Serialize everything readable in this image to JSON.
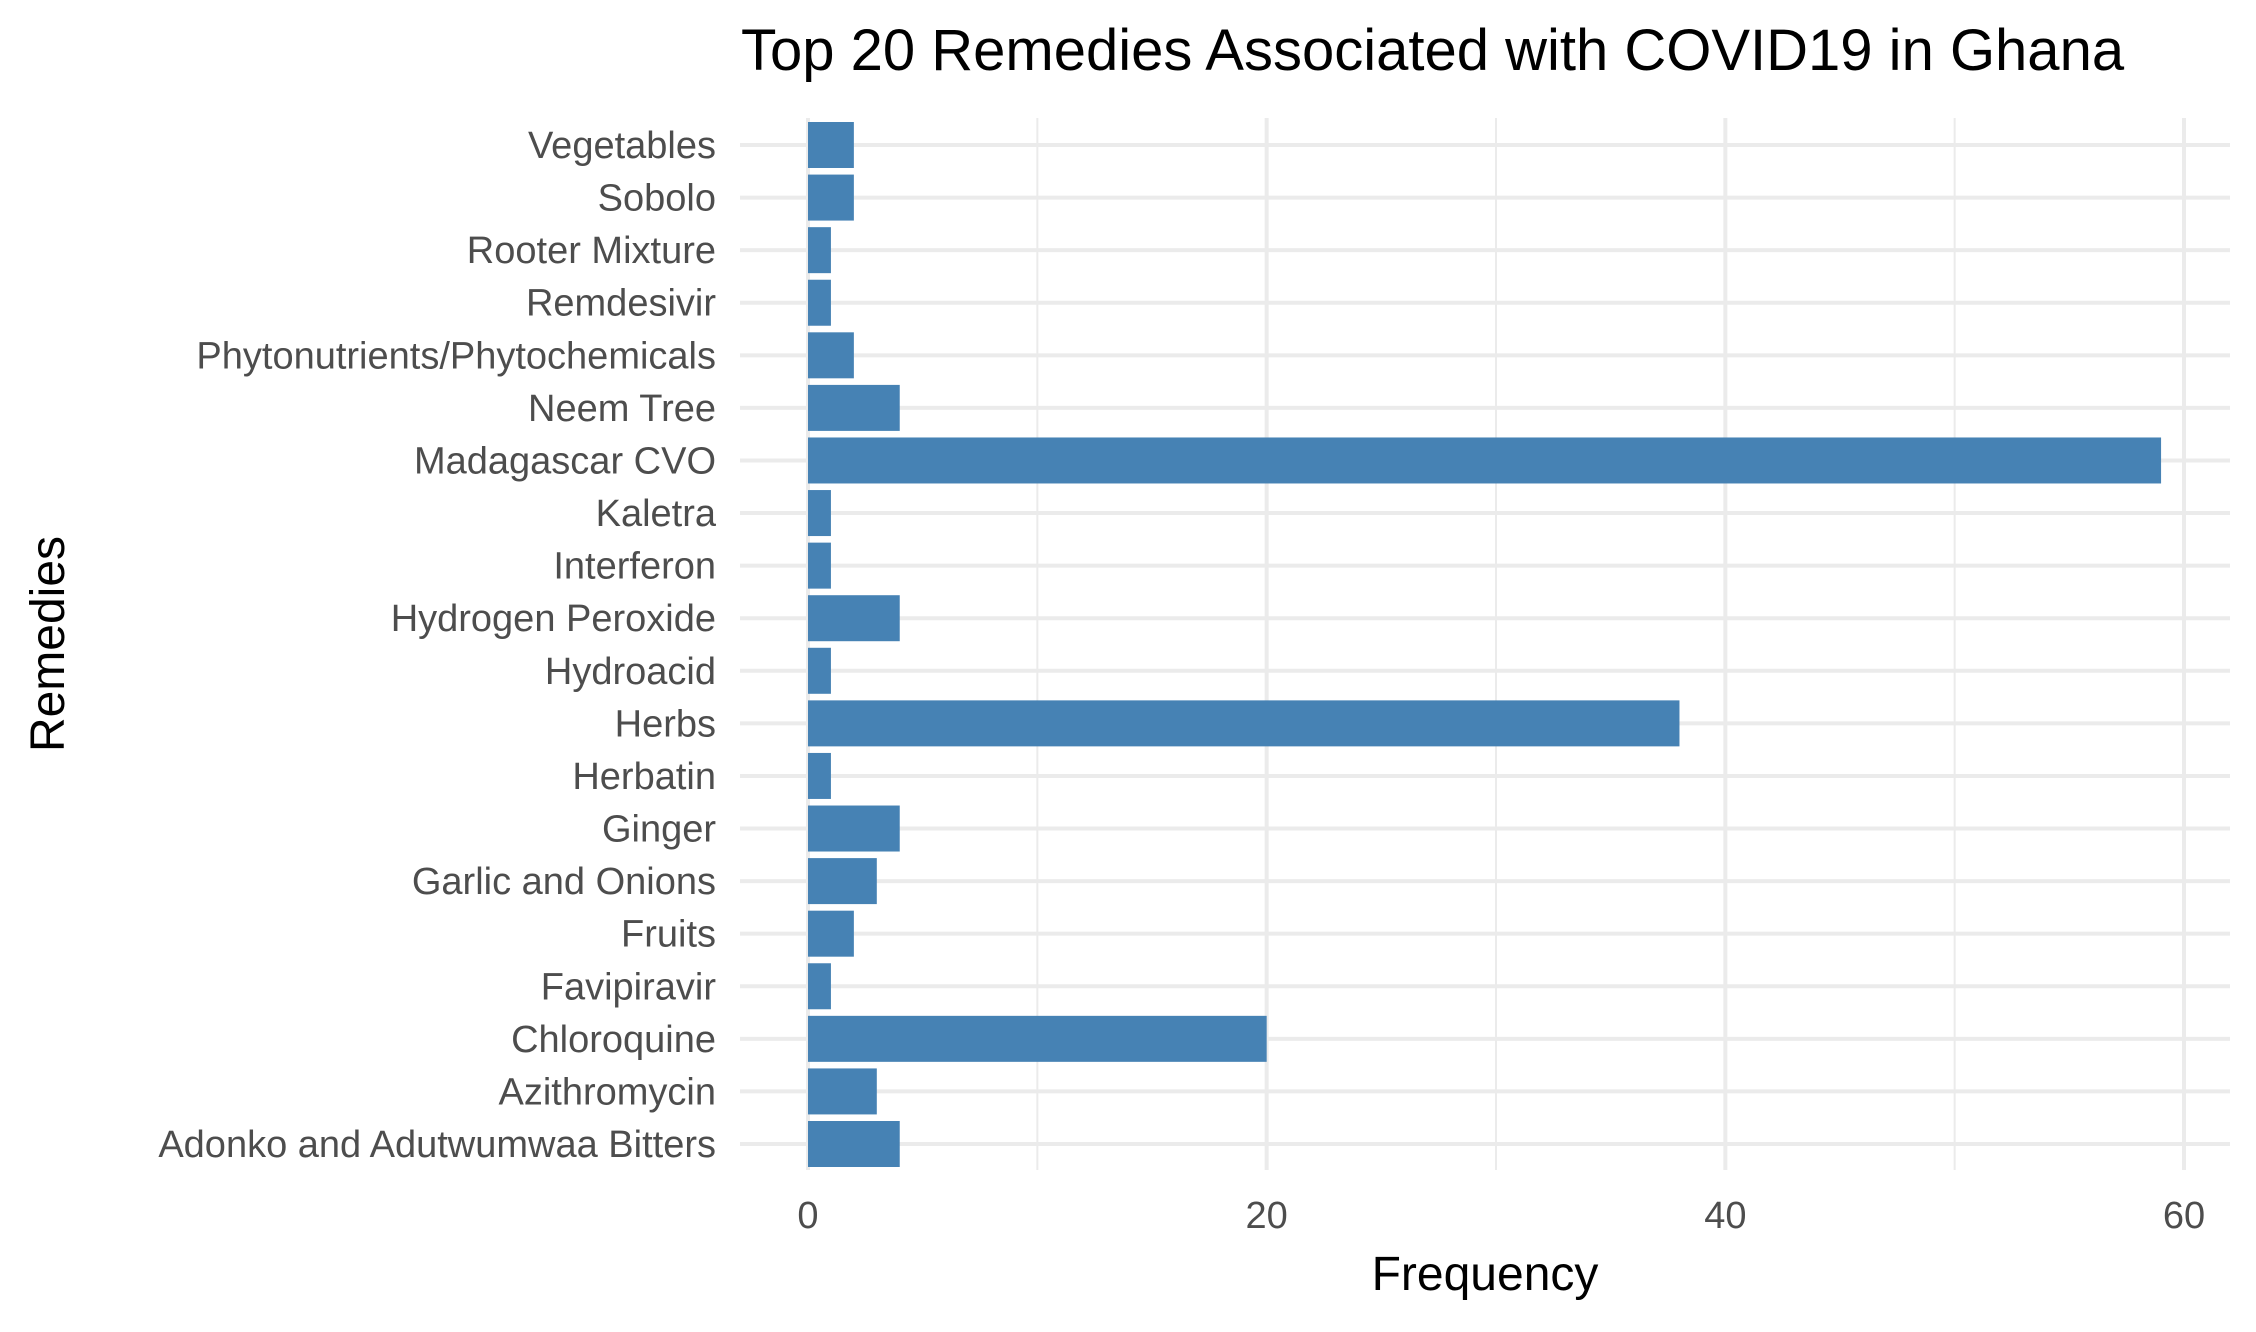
{
  "chart_data": {
    "type": "bar",
    "orientation": "horizontal",
    "title": "Top 20 Remedies Associated with COVID19 in Ghana",
    "xlabel": "Frequency",
    "ylabel": "Remedies",
    "xlim": [
      0,
      60
    ],
    "x_ticks": [
      0,
      20,
      40,
      60
    ],
    "grid": true,
    "legend": "none",
    "bar_color": "#4682b4",
    "categories": [
      "Vegetables",
      "Sobolo",
      "Rooter Mixture",
      "Remdesivir",
      "Phytonutrients/Phytochemicals",
      "Neem Tree",
      "Madagascar CVO",
      "Kaletra",
      "Interferon",
      "Hydrogen Peroxide",
      "Hydroacid",
      "Herbs",
      "Herbatin",
      "Ginger",
      "Garlic and Onions",
      "Fruits",
      "Favipiravir",
      "Chloroquine",
      "Azithromycin",
      "Adonko and Adutwumwaa Bitters"
    ],
    "values": [
      2,
      2,
      1,
      1,
      2,
      4,
      59,
      1,
      1,
      4,
      1,
      38,
      1,
      4,
      3,
      2,
      1,
      20,
      3,
      4
    ]
  }
}
